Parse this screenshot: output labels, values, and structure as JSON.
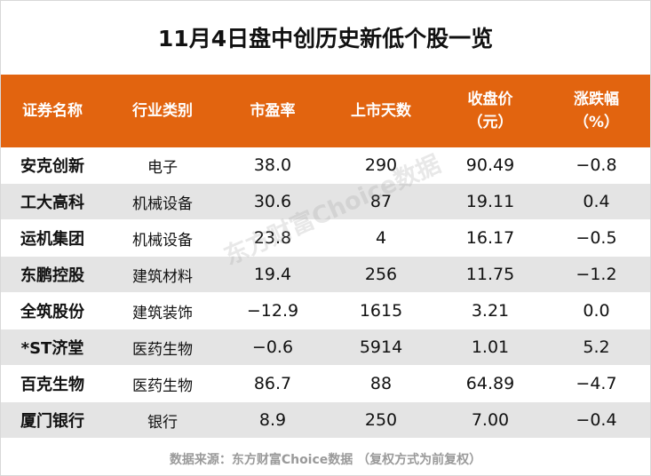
{
  "title": "11月4日盘中创历史新低个股一览",
  "headers": [
    "证券名称",
    "行业类别",
    "市盈率",
    "上市天数",
    "收盘价\n（元）",
    "涨跌幅\n（%）"
  ],
  "rows": [
    [
      "安克创新",
      "电子",
      "38.0",
      "290",
      "90.49",
      "−0.8"
    ],
    [
      "工大高科",
      "机械设备",
      "30.6",
      "87",
      "19.11",
      "0.4"
    ],
    [
      "运机集团",
      "机械设备",
      "23.8",
      "4",
      "16.17",
      "−0.5"
    ],
    [
      "东鹏控股",
      "建筑材料",
      "19.4",
      "256",
      "11.75",
      "−1.2"
    ],
    [
      "全筑股份",
      "建筑装饰",
      "−12.9",
      "1615",
      "3.21",
      "0.0"
    ],
    [
      "*ST济堂",
      "医药生物",
      "−0.6",
      "5914",
      "1.01",
      "5.2"
    ],
    [
      "百克生物",
      "医药生物",
      "86.7",
      "88",
      "64.89",
      "−4.7"
    ],
    [
      "厦门银行",
      "银行",
      "8.9",
      "250",
      "7.00",
      "−0.4"
    ]
  ],
  "watermark": "东方财富Choice数据",
  "source": "数据来源：东方财富Choice数据 （复权方式为前复权）",
  "colors": {
    "header_bg": "#e2640f",
    "alt_row_bg": "#e4e4e4"
  }
}
